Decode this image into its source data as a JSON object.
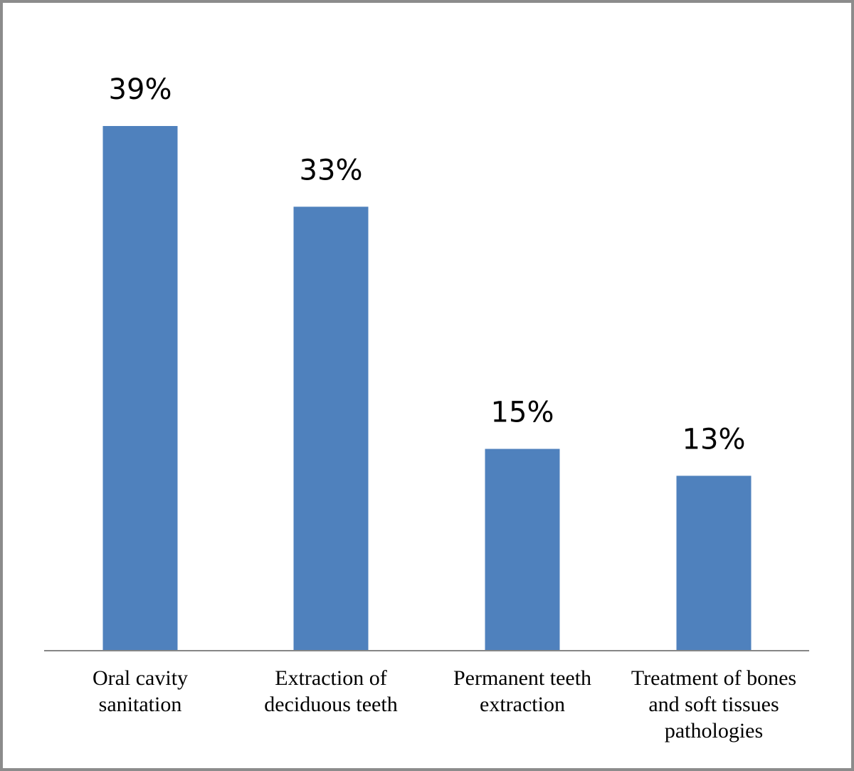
{
  "chart_data": {
    "type": "bar",
    "categories": [
      [
        "Oral cavity",
        "sanitation"
      ],
      [
        "Extraction of",
        "deciduous teeth"
      ],
      [
        "Permanent teeth",
        "extraction"
      ],
      [
        "Treatment of bones",
        "and soft tissues",
        "pathologies"
      ]
    ],
    "values": [
      39,
      33,
      15,
      13
    ],
    "value_labels": [
      "39%",
      "33%",
      "15%",
      "13%"
    ],
    "unit": "%",
    "ylim": [
      0,
      39
    ],
    "grid": false,
    "legend": "none",
    "bar_color": "#4f81bd",
    "axis_color": "#868686"
  }
}
